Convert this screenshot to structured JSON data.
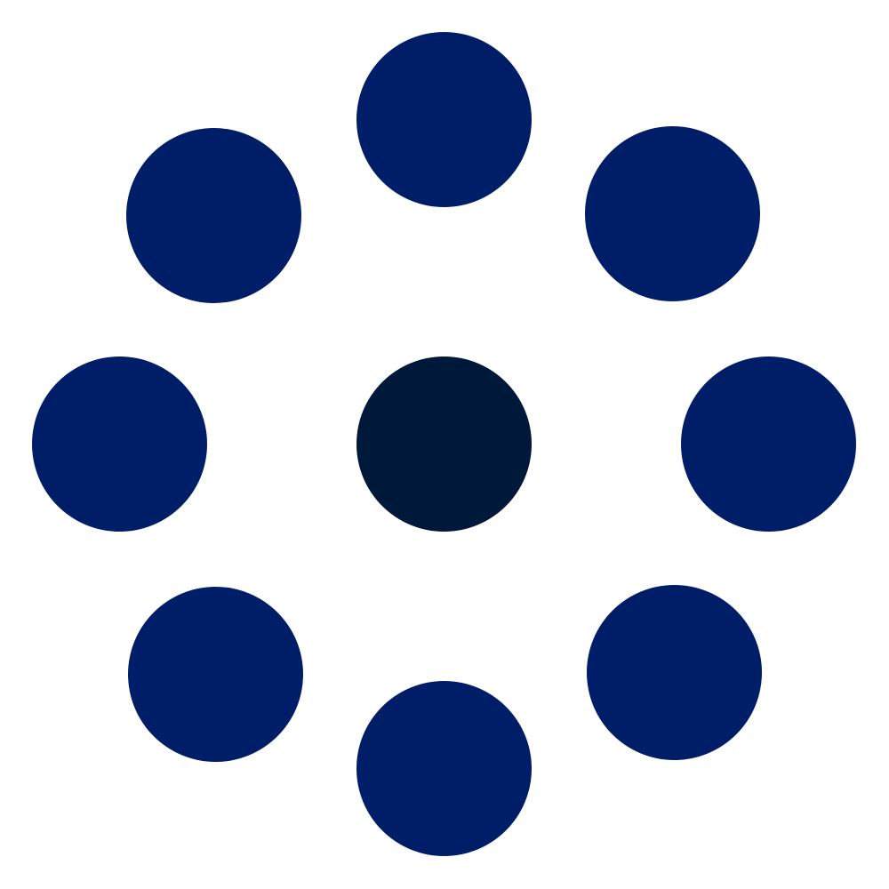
{
  "icon": {
    "name": "loading-spinner-icon",
    "colors": {
      "outer_dot": "#001E68",
      "center_dot": "#001839",
      "background": "#FFFFFF"
    }
  }
}
